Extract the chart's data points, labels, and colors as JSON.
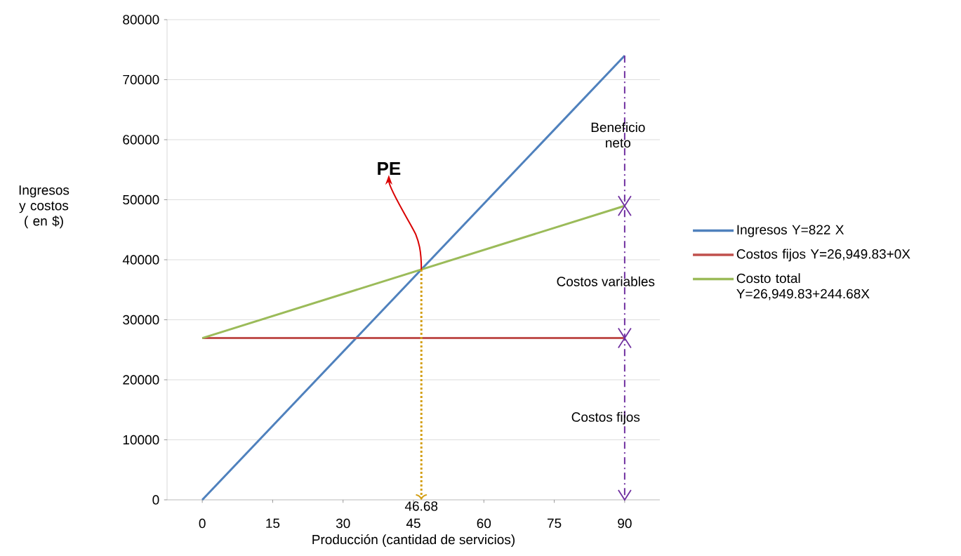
{
  "chart_data": {
    "type": "line",
    "xlabel": "Producción (cantidad de servicios)",
    "ylabel": "Ingresos y costos ( en $)",
    "xlim": [
      -7.5,
      97.5
    ],
    "xticks": [
      0,
      15,
      30,
      45,
      60,
      75,
      90
    ],
    "ylim": [
      0,
      80000
    ],
    "yticks": [
      0,
      10000,
      20000,
      30000,
      40000,
      50000,
      60000,
      70000,
      80000
    ],
    "grid": "y",
    "legend": "right",
    "series": [
      {
        "name": "Ingresos Y=822 X",
        "color": "#4f81bd",
        "x": [
          0,
          90
        ],
        "values": [
          0,
          74000
        ]
      },
      {
        "name": "Costos fijos Y=26,949.83+0X",
        "color": "#c0504d",
        "x": [
          0,
          90
        ],
        "values": [
          26950,
          26950
        ]
      },
      {
        "name": "Costo total Y=26,949.83+244.68X",
        "color": "#9bbb59",
        "x": [
          0,
          90
        ],
        "values": [
          26950,
          48970
        ]
      },
      {
        "color": "#d4a017",
        "line_style": "dotted",
        "x": [
          46.68,
          46.68
        ],
        "values": [
          38370,
          0
        ]
      },
      {
        "color": "#7030a0",
        "line_style": "dashed",
        "x": [
          90,
          90
        ],
        "values": [
          74000,
          0
        ]
      }
    ],
    "annotations": [
      {
        "text": "PE",
        "x": 46.68,
        "y": 38370
      },
      {
        "text": "46.68",
        "x": 46.68,
        "y": 0
      },
      "Beneficio neto",
      "Costos variables",
      "Costos fijos"
    ]
  }
}
